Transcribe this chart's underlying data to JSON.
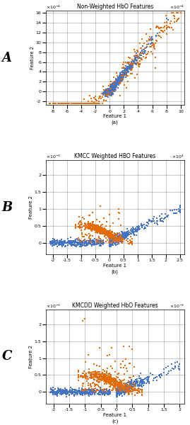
{
  "subplot_A": {
    "title": "Non-Weighted HbO Features",
    "xlabel": "Feature 1",
    "ylabel": "Feature 2",
    "label": "A",
    "xlim": [
      -0.0009,
      0.00105
    ],
    "ylim": [
      -0.00028,
      0.00165
    ],
    "xticks": [
      -8,
      -6,
      -4,
      -2,
      0,
      2,
      4,
      6,
      8,
      10
    ],
    "yticks": [
      -2,
      0,
      2,
      4,
      6,
      8,
      10,
      12,
      14,
      16
    ],
    "xscale": 0.0001,
    "yscale": 0.0001,
    "sublabel": "(a)"
  },
  "subplot_B": {
    "title": "KMCC Weighted HBO Features",
    "xlabel": "Feature 1",
    "ylabel": "Feature 2",
    "label": "B",
    "xlim": [
      -22500.0,
      26500.0
    ],
    "ylim": [
      -0.00035,
      0.00245
    ],
    "xticks": [
      -2,
      -1.5,
      -1,
      -0.5,
      0,
      0.5,
      1,
      1.5,
      2,
      2.5
    ],
    "yticks": [
      0,
      0.5,
      1,
      1.5,
      2
    ],
    "xscale": 10000.0,
    "yscale": 0.001,
    "sublabel": "(b)"
  },
  "subplot_C": {
    "title": "KMCDD Weighted HbO Features",
    "xlabel": "Feature 1",
    "ylabel": "Feature 2",
    "label": "C",
    "xlim": [
      -0.00225,
      0.00215
    ],
    "ylim": [
      -0.00035,
      0.00245
    ],
    "xticks": [
      -2,
      -1.5,
      -1,
      -0.5,
      0,
      0.5,
      1,
      1.5,
      2
    ],
    "yticks": [
      0,
      0.5,
      1,
      1.5,
      2
    ],
    "xscale": 0.001,
    "yscale": 0.001,
    "sublabel": "(c)"
  },
  "color_blue": "#4472C4",
  "color_orange": "#E36C09",
  "marker_size": 2,
  "seed": 42
}
